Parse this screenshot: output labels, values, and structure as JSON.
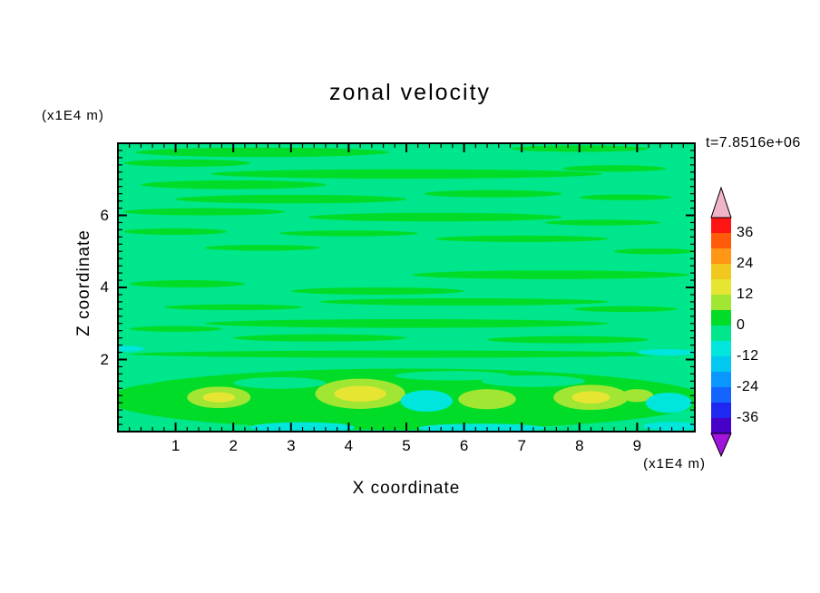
{
  "figure": {
    "title": "zonal velocity",
    "time_label": "t=7.8516e+06",
    "x_axis": {
      "label": "X coordinate",
      "unit_label": "(x1E4 m)"
    },
    "z_axis": {
      "label": "Z coordinate",
      "unit_label": "(x1E4 m)"
    }
  },
  "chart_data": {
    "type": "heatmap",
    "subtype": "filled-contour",
    "title": "zonal velocity",
    "xlabel": "X coordinate (x1E4 m)",
    "ylabel": "Z coordinate (x1E4 m)",
    "time_annotation": "t=7.8516e+06",
    "x_range": [
      0,
      10
    ],
    "z_range": [
      0,
      8
    ],
    "x_ticks": [
      1,
      2,
      3,
      4,
      5,
      6,
      7,
      8,
      9
    ],
    "z_ticks": [
      2,
      4,
      6
    ],
    "minor_tick_step": 0.2,
    "contour_interval": 6,
    "colorbar": {
      "tick_values": [
        36,
        24,
        12,
        0,
        -12,
        -24,
        -36
      ],
      "level_max": 42,
      "level_step": 6,
      "segment_colors_top_to_bottom": [
        "#FF1414",
        "#FF5A0A",
        "#FF9614",
        "#F0C81E",
        "#E6E632",
        "#A0E632",
        "#00DC28",
        "#00E68C",
        "#00E6DC",
        "#00C8F0",
        "#0A96FF",
        "#1464FF",
        "#1E28F0",
        "#4600C8"
      ],
      "over_color": "#F0B4C8",
      "under_color": "#A014DC"
    },
    "base_level": "0",
    "level_colors": {
      "-12": "#00E6DC",
      "0": "#00E68C",
      "6": "#00DC28",
      "12": "#A0E632",
      "18": "#E6E632"
    },
    "regions": [
      {
        "x": 2.5,
        "z": 7.75,
        "rx": 2.2,
        "rz": 0.13,
        "level": "6"
      },
      {
        "x": 8.0,
        "z": 7.85,
        "rx": 1.2,
        "rz": 0.09,
        "level": "6"
      },
      {
        "x": 1.2,
        "z": 7.45,
        "rx": 1.1,
        "rz": 0.1,
        "level": "6"
      },
      {
        "x": 5.0,
        "z": 7.15,
        "rx": 3.4,
        "rz": 0.13,
        "level": "6"
      },
      {
        "x": 8.6,
        "z": 7.3,
        "rx": 0.9,
        "rz": 0.09,
        "level": "6"
      },
      {
        "x": 2.0,
        "z": 6.85,
        "rx": 1.6,
        "rz": 0.12,
        "level": "6"
      },
      {
        "x": 6.5,
        "z": 6.6,
        "rx": 1.2,
        "rz": 0.1,
        "level": "6"
      },
      {
        "x": 3.0,
        "z": 6.45,
        "rx": 2.0,
        "rz": 0.12,
        "level": "6"
      },
      {
        "x": 8.8,
        "z": 6.5,
        "rx": 0.8,
        "rz": 0.08,
        "level": "6"
      },
      {
        "x": 1.5,
        "z": 6.1,
        "rx": 1.4,
        "rz": 0.1,
        "level": "6"
      },
      {
        "x": 5.5,
        "z": 5.95,
        "rx": 2.2,
        "rz": 0.12,
        "level": "6"
      },
      {
        "x": 8.4,
        "z": 5.8,
        "rx": 1.0,
        "rz": 0.08,
        "level": "6"
      },
      {
        "x": 1.0,
        "z": 5.55,
        "rx": 0.9,
        "rz": 0.09,
        "level": "6"
      },
      {
        "x": 4.0,
        "z": 5.5,
        "rx": 1.2,
        "rz": 0.08,
        "level": "6"
      },
      {
        "x": 7.0,
        "z": 5.35,
        "rx": 1.5,
        "rz": 0.09,
        "level": "6"
      },
      {
        "x": 2.5,
        "z": 5.1,
        "rx": 1.0,
        "rz": 0.08,
        "level": "6"
      },
      {
        "x": 9.3,
        "z": 5.0,
        "rx": 0.7,
        "rz": 0.08,
        "level": "6"
      },
      {
        "x": 7.5,
        "z": 4.35,
        "rx": 2.4,
        "rz": 0.12,
        "level": "6"
      },
      {
        "x": 1.2,
        "z": 4.1,
        "rx": 1.0,
        "rz": 0.1,
        "level": "6"
      },
      {
        "x": 4.5,
        "z": 3.9,
        "rx": 1.5,
        "rz": 0.1,
        "level": "6"
      },
      {
        "x": 6.0,
        "z": 3.6,
        "rx": 2.5,
        "rz": 0.1,
        "level": "6"
      },
      {
        "x": 2.0,
        "z": 3.45,
        "rx": 1.2,
        "rz": 0.08,
        "level": "6"
      },
      {
        "x": 8.8,
        "z": 3.4,
        "rx": 0.9,
        "rz": 0.08,
        "level": "6"
      },
      {
        "x": 5.0,
        "z": 3.0,
        "rx": 3.5,
        "rz": 0.12,
        "level": "6"
      },
      {
        "x": 1.0,
        "z": 2.85,
        "rx": 0.8,
        "rz": 0.08,
        "level": "6"
      },
      {
        "x": 3.5,
        "z": 2.6,
        "rx": 1.5,
        "rz": 0.1,
        "level": "6"
      },
      {
        "x": 7.8,
        "z": 2.55,
        "rx": 1.4,
        "rz": 0.1,
        "level": "6"
      },
      {
        "x": 5.0,
        "z": 2.15,
        "rx": 4.8,
        "rz": 0.1,
        "level": "6"
      },
      {
        "x": 5.0,
        "z": 0.9,
        "rx": 5.2,
        "rz": 0.85,
        "level": "6"
      },
      {
        "x": 2.8,
        "z": 1.35,
        "rx": 0.8,
        "rz": 0.16,
        "level": "0"
      },
      {
        "x": 7.2,
        "z": 1.4,
        "rx": 0.9,
        "rz": 0.16,
        "level": "0"
      },
      {
        "x": 5.8,
        "z": 1.55,
        "rx": 1.0,
        "rz": 0.13,
        "level": "0"
      },
      {
        "x": 0.3,
        "z": 1.5,
        "rx": 0.5,
        "rz": 0.2,
        "level": "0"
      },
      {
        "x": 1.75,
        "z": 0.95,
        "rx": 0.55,
        "rz": 0.3,
        "level": "12"
      },
      {
        "x": 4.2,
        "z": 1.05,
        "rx": 0.78,
        "rz": 0.42,
        "level": "12"
      },
      {
        "x": 6.4,
        "z": 0.9,
        "rx": 0.5,
        "rz": 0.28,
        "level": "12"
      },
      {
        "x": 8.2,
        "z": 0.95,
        "rx": 0.65,
        "rz": 0.35,
        "level": "12"
      },
      {
        "x": 9.0,
        "z": 1.0,
        "rx": 0.28,
        "rz": 0.18,
        "level": "12"
      },
      {
        "x": 1.75,
        "z": 0.95,
        "rx": 0.28,
        "rz": 0.14,
        "level": "18"
      },
      {
        "x": 4.2,
        "z": 1.05,
        "rx": 0.45,
        "rz": 0.22,
        "level": "18"
      },
      {
        "x": 8.2,
        "z": 0.95,
        "rx": 0.33,
        "rz": 0.17,
        "level": "18"
      },
      {
        "x": 5.35,
        "z": 0.85,
        "rx": 0.45,
        "rz": 0.3,
        "level": "-12"
      },
      {
        "x": 9.55,
        "z": 0.8,
        "rx": 0.4,
        "rz": 0.28,
        "level": "-12"
      },
      {
        "x": 3.2,
        "z": 0.12,
        "rx": 0.9,
        "rz": 0.14,
        "level": "-12"
      },
      {
        "x": 6.3,
        "z": 0.1,
        "rx": 1.1,
        "rz": 0.12,
        "level": "-12"
      },
      {
        "x": 9.6,
        "z": 0.15,
        "rx": 0.5,
        "rz": 0.12,
        "level": "-12"
      },
      {
        "x": 9.5,
        "z": 2.2,
        "rx": 0.5,
        "rz": 0.09,
        "level": "-12"
      },
      {
        "x": 0.15,
        "z": 2.3,
        "rx": 0.3,
        "rz": 0.08,
        "level": "-12"
      }
    ]
  }
}
